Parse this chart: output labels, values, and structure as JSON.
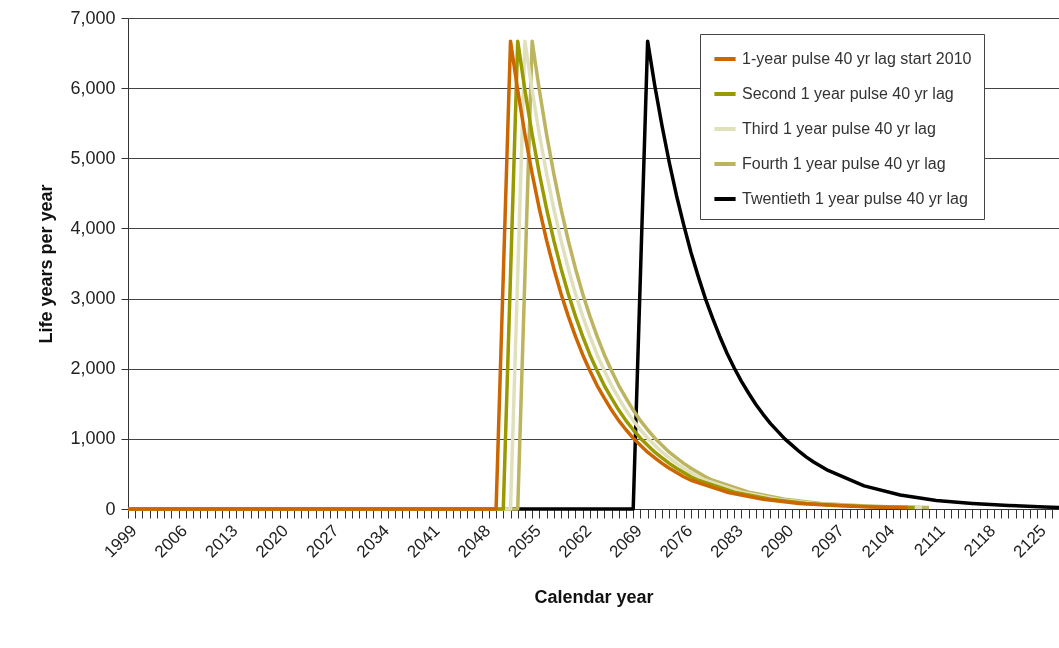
{
  "chart_data": {
    "type": "line",
    "xlabel": "Calendar year",
    "ylabel": "Life years per year",
    "xlim": [
      1999,
      2128
    ],
    "ylim": [
      0,
      7000
    ],
    "yticks": [
      0,
      {
        "value": 1000,
        "label": "1,000"
      },
      {
        "value": 2000,
        "label": "2,000"
      },
      {
        "value": 3000,
        "label": "3,000"
      },
      {
        "value": 4000,
        "label": "4,000"
      },
      {
        "value": 5000,
        "label": "5,000"
      },
      {
        "value": 6000,
        "label": "6,000"
      },
      {
        "value": 7000,
        "label": "7,000"
      }
    ],
    "xticks": [
      1999,
      {
        "value": 2000,
        "label": null
      },
      {
        "value": 2001,
        "label": null
      },
      {
        "value": 2002,
        "label": null
      },
      {
        "value": 2003,
        "label": null
      },
      {
        "value": 2004,
        "label": null
      },
      {
        "value": 2005,
        "label": null
      },
      2006,
      {
        "value": 2007,
        "label": null
      },
      {
        "value": 2008,
        "label": null
      },
      {
        "value": 2009,
        "label": null
      },
      {
        "value": 2010,
        "label": null
      },
      {
        "value": 2011,
        "label": null
      },
      {
        "value": 2012,
        "label": null
      },
      2013,
      {
        "value": 2014,
        "label": null
      },
      {
        "value": 2015,
        "label": null
      },
      {
        "value": 2016,
        "label": null
      },
      {
        "value": 2017,
        "label": null
      },
      {
        "value": 2018,
        "label": null
      },
      {
        "value": 2019,
        "label": null
      },
      2020,
      {
        "value": 2021,
        "label": null
      },
      {
        "value": 2022,
        "label": null
      },
      {
        "value": 2023,
        "label": null
      },
      {
        "value": 2024,
        "label": null
      },
      {
        "value": 2025,
        "label": null
      },
      {
        "value": 2026,
        "label": null
      },
      2027,
      {
        "value": 2028,
        "label": null
      },
      {
        "value": 2029,
        "label": null
      },
      {
        "value": 2030,
        "label": null
      },
      {
        "value": 2031,
        "label": null
      },
      {
        "value": 2032,
        "label": null
      },
      {
        "value": 2033,
        "label": null
      },
      2034,
      {
        "value": 2035,
        "label": null
      },
      {
        "value": 2036,
        "label": null
      },
      {
        "value": 2037,
        "label": null
      },
      {
        "value": 2038,
        "label": null
      },
      {
        "value": 2039,
        "label": null
      },
      {
        "value": 2040,
        "label": null
      },
      2041,
      {
        "value": 2042,
        "label": null
      },
      {
        "value": 2043,
        "label": null
      },
      {
        "value": 2044,
        "label": null
      },
      {
        "value": 2045,
        "label": null
      },
      {
        "value": 2046,
        "label": null
      },
      {
        "value": 2047,
        "label": null
      },
      2048,
      {
        "value": 2049,
        "label": null
      },
      {
        "value": 2050,
        "label": null
      },
      {
        "value": 2051,
        "label": null
      },
      {
        "value": 2052,
        "label": null
      },
      {
        "value": 2053,
        "label": null
      },
      {
        "value": 2054,
        "label": null
      },
      2055,
      {
        "value": 2056,
        "label": null
      },
      {
        "value": 2057,
        "label": null
      },
      {
        "value": 2058,
        "label": null
      },
      {
        "value": 2059,
        "label": null
      },
      {
        "value": 2060,
        "label": null
      },
      {
        "value": 2061,
        "label": null
      },
      2062,
      {
        "value": 2063,
        "label": null
      },
      {
        "value": 2064,
        "label": null
      },
      {
        "value": 2065,
        "label": null
      },
      {
        "value": 2066,
        "label": null
      },
      {
        "value": 2067,
        "label": null
      },
      {
        "value": 2068,
        "label": null
      },
      2069,
      {
        "value": 2070,
        "label": null
      },
      {
        "value": 2071,
        "label": null
      },
      {
        "value": 2072,
        "label": null
      },
      {
        "value": 2073,
        "label": null
      },
      {
        "value": 2074,
        "label": null
      },
      {
        "value": 2075,
        "label": null
      },
      2076,
      {
        "value": 2077,
        "label": null
      },
      {
        "value": 2078,
        "label": null
      },
      {
        "value": 2079,
        "label": null
      },
      {
        "value": 2080,
        "label": null
      },
      {
        "value": 2081,
        "label": null
      },
      {
        "value": 2082,
        "label": null
      },
      2083,
      {
        "value": 2084,
        "label": null
      },
      {
        "value": 2085,
        "label": null
      },
      {
        "value": 2086,
        "label": null
      },
      {
        "value": 2087,
        "label": null
      },
      {
        "value": 2088,
        "label": null
      },
      {
        "value": 2089,
        "label": null
      },
      2090,
      {
        "value": 2091,
        "label": null
      },
      {
        "value": 2092,
        "label": null
      },
      {
        "value": 2093,
        "label": null
      },
      {
        "value": 2094,
        "label": null
      },
      {
        "value": 2095,
        "label": null
      },
      {
        "value": 2096,
        "label": null
      },
      2097,
      {
        "value": 2098,
        "label": null
      },
      {
        "value": 2099,
        "label": null
      },
      {
        "value": 2100,
        "label": null
      },
      {
        "value": 2101,
        "label": null
      },
      {
        "value": 2102,
        "label": null
      },
      {
        "value": 2103,
        "label": null
      },
      2104,
      {
        "value": 2105,
        "label": null
      },
      {
        "value": 2106,
        "label": null
      },
      {
        "value": 2107,
        "label": null
      },
      {
        "value": 2108,
        "label": null
      },
      {
        "value": 2109,
        "label": null
      },
      {
        "value": 2110,
        "label": null
      },
      2111,
      {
        "value": 2112,
        "label": null
      },
      {
        "value": 2113,
        "label": null
      },
      {
        "value": 2114,
        "label": null
      },
      {
        "value": 2115,
        "label": null
      },
      {
        "value": 2116,
        "label": null
      },
      {
        "value": 2117,
        "label": null
      },
      2118,
      {
        "value": 2119,
        "label": null
      },
      {
        "value": 2120,
        "label": null
      },
      {
        "value": 2121,
        "label": null
      },
      {
        "value": 2122,
        "label": null
      },
      {
        "value": 2123,
        "label": null
      },
      {
        "value": 2124,
        "label": null
      },
      2125,
      {
        "value": 2126,
        "label": null
      },
      {
        "value": 2127,
        "label": null
      },
      {
        "value": 2128,
        "label": null
      }
    ],
    "grid": "y",
    "legend": "top right",
    "series": [
      {
        "name": "1-year pulse 40 yr lag start 2010",
        "color": "#cc6600",
        "x": [
          1999,
          2050,
          2051,
          2052,
          2053,
          2054,
          2055,
          2056,
          2057,
          2058,
          2059,
          2060,
          2061,
          2062,
          2063,
          2064,
          2065,
          2066,
          2067,
          2068,
          2069,
          2070,
          2071,
          2072,
          2073,
          2074,
          2075,
          2076,
          2077,
          2082,
          2087,
          2092,
          2097,
          2102,
          2107
        ],
        "values": [
          0,
          0,
          3330,
          6670,
          5970,
          5340,
          4780,
          4280,
          3830,
          3430,
          3070,
          2750,
          2460,
          2200,
          1970,
          1760,
          1580,
          1410,
          1260,
          1130,
          1010,
          910,
          810,
          730,
          650,
          580,
          520,
          460,
          410,
          240,
          140,
          80,
          50,
          30,
          20
        ]
      },
      {
        "name": "Second 1 year pulse 40 yr lag",
        "color": "#999900",
        "x": [
          1999,
          2051,
          2052,
          2053,
          2054,
          2055,
          2056,
          2057,
          2058,
          2059,
          2060,
          2061,
          2062,
          2063,
          2064,
          2065,
          2066,
          2067,
          2068,
          2069,
          2070,
          2071,
          2072,
          2073,
          2074,
          2075,
          2076,
          2077,
          2078,
          2083,
          2088,
          2093,
          2098,
          2103,
          2108
        ],
        "values": [
          0,
          0,
          3330,
          6670,
          5970,
          5340,
          4780,
          4280,
          3830,
          3430,
          3070,
          2750,
          2460,
          2200,
          1970,
          1760,
          1580,
          1410,
          1260,
          1130,
          1010,
          910,
          810,
          730,
          650,
          580,
          520,
          460,
          410,
          240,
          140,
          80,
          50,
          30,
          20
        ]
      },
      {
        "name": "Third 1 year pulse 40 yr lag",
        "color": "#e1e0bc",
        "x": [
          1999,
          2052,
          2053,
          2054,
          2055,
          2056,
          2057,
          2058,
          2059,
          2060,
          2061,
          2062,
          2063,
          2064,
          2065,
          2066,
          2067,
          2068,
          2069,
          2070,
          2071,
          2072,
          2073,
          2074,
          2075,
          2076,
          2077,
          2078,
          2079,
          2084,
          2089,
          2094,
          2099,
          2104,
          2109
        ],
        "values": [
          0,
          0,
          3330,
          6670,
          5970,
          5340,
          4780,
          4280,
          3830,
          3430,
          3070,
          2750,
          2460,
          2200,
          1970,
          1760,
          1580,
          1410,
          1260,
          1130,
          1010,
          910,
          810,
          730,
          650,
          580,
          520,
          460,
          410,
          240,
          140,
          80,
          50,
          30,
          20
        ]
      },
      {
        "name": "Fourth 1 year pulse 40 yr lag",
        "color": "#bcb45e",
        "x": [
          1999,
          2053,
          2054,
          2055,
          2056,
          2057,
          2058,
          2059,
          2060,
          2061,
          2062,
          2063,
          2064,
          2065,
          2066,
          2067,
          2068,
          2069,
          2070,
          2071,
          2072,
          2073,
          2074,
          2075,
          2076,
          2077,
          2078,
          2079,
          2080,
          2085,
          2090,
          2095,
          2100,
          2105,
          2110
        ],
        "values": [
          0,
          0,
          3330,
          6670,
          5970,
          5340,
          4780,
          4280,
          3830,
          3430,
          3070,
          2750,
          2460,
          2200,
          1970,
          1760,
          1580,
          1410,
          1260,
          1130,
          1010,
          910,
          810,
          730,
          650,
          580,
          520,
          460,
          410,
          240,
          140,
          80,
          50,
          30,
          20
        ]
      },
      {
        "name": "Twentieth 1 year pulse 40 yr lag",
        "color": "#000000",
        "x": [
          1999,
          2069,
          2070,
          2071,
          2072,
          2073,
          2074,
          2075,
          2076,
          2077,
          2078,
          2079,
          2080,
          2081,
          2082,
          2083,
          2084,
          2085,
          2086,
          2087,
          2088,
          2089,
          2090,
          2091,
          2092,
          2093,
          2094,
          2095,
          2096,
          2101,
          2106,
          2111,
          2116,
          2121,
          2126,
          2128
        ],
        "values": [
          0,
          0,
          3330,
          6670,
          6030,
          5460,
          4940,
          4470,
          4050,
          3660,
          3320,
          3000,
          2720,
          2460,
          2220,
          2010,
          1820,
          1650,
          1490,
          1350,
          1220,
          1110,
          1000,
          910,
          820,
          740,
          670,
          610,
          550,
          330,
          200,
          120,
          80,
          50,
          30,
          20
        ]
      }
    ]
  }
}
